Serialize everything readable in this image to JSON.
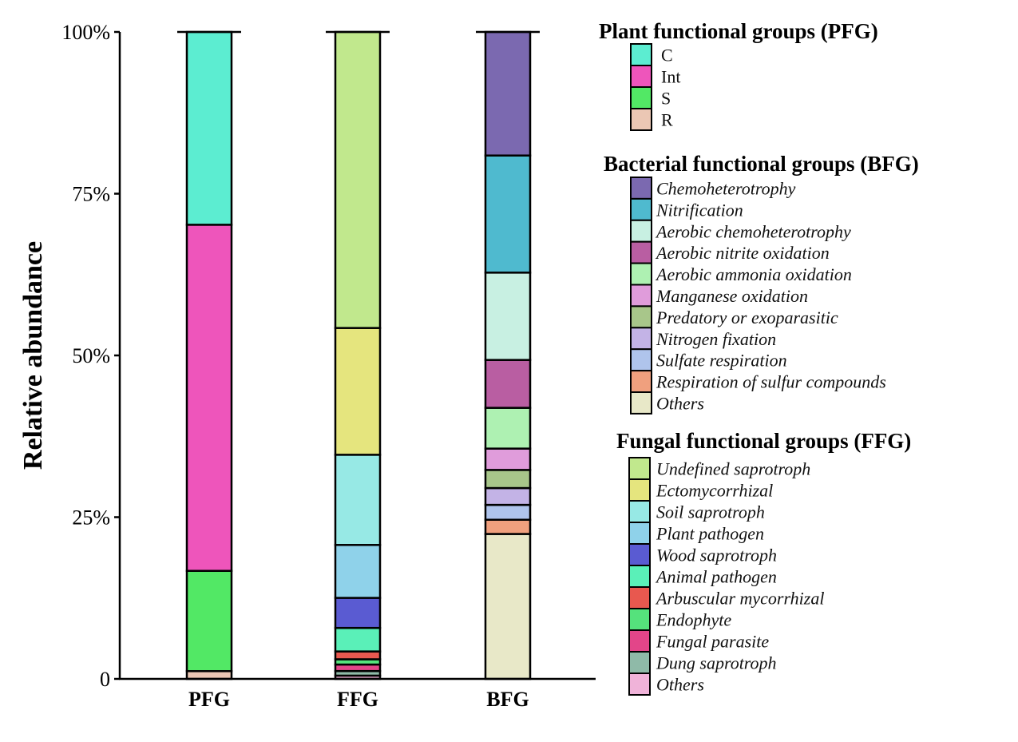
{
  "chart_data": {
    "type": "bar",
    "stacked": true,
    "ylabel": "Relative abundance",
    "xlabel": "",
    "ylim": [
      0,
      100
    ],
    "ytick_values": [
      0,
      25,
      50,
      75,
      100
    ],
    "ytick_labels": [
      "0",
      "25%",
      "50%",
      "75%",
      "100%"
    ],
    "categories": [
      "PFG",
      "FFG",
      "BFG"
    ],
    "bars": [
      {
        "category": "PFG",
        "segments": [
          {
            "name": "R",
            "value": 1.2,
            "color": "#EBC7B4"
          },
          {
            "name": "S",
            "value": 15.5,
            "color": "#52E865"
          },
          {
            "name": "Int",
            "value": 53.5,
            "color": "#EE55BB"
          },
          {
            "name": "C",
            "value": 29.8,
            "color": "#5CEDD1"
          }
        ]
      },
      {
        "category": "FFG",
        "segments": [
          {
            "name": "Others",
            "value": 0.5,
            "color": "#F0B3D9"
          },
          {
            "name": "Dung saprotroph",
            "value": 0.7,
            "color": "#8FBAA8"
          },
          {
            "name": "Fungal parasite",
            "value": 1.0,
            "color": "#E34589"
          },
          {
            "name": "Endophyte",
            "value": 0.8,
            "color": "#55E27C"
          },
          {
            "name": "Arbuscular mycorrhizal",
            "value": 1.2,
            "color": "#E8584F"
          },
          {
            "name": "Animal pathogen",
            "value": 3.6,
            "color": "#5AF0B8"
          },
          {
            "name": "Wood saprotroph",
            "value": 4.6,
            "color": "#5A5BD2"
          },
          {
            "name": "Plant pathogen",
            "value": 8.1,
            "color": "#8FD2EA"
          },
          {
            "name": "Soil saprotroph",
            "value": 13.8,
            "color": "#97E9E5"
          },
          {
            "name": "Ectomycorrhizal",
            "value": 19.4,
            "color": "#E5E57E"
          },
          {
            "name": "Undefined saprotroph",
            "value": 45.3,
            "color": "#C1E88D"
          }
        ]
      },
      {
        "category": "BFG",
        "segments": [
          {
            "name": "Others",
            "value": 22.4,
            "color": "#E8E8C8"
          },
          {
            "name": "Respiration of sulfur compounds",
            "value": 2.2,
            "color": "#F0A07E"
          },
          {
            "name": "Sulfate respiration",
            "value": 2.3,
            "color": "#AFC4EC"
          },
          {
            "name": "Nitrogen fixation",
            "value": 2.6,
            "color": "#C3B3E6"
          },
          {
            "name": "Predatory or exoparasitic",
            "value": 2.8,
            "color": "#A8C68A"
          },
          {
            "name": "Manganese oxidation",
            "value": 3.3,
            "color": "#E09CDB"
          },
          {
            "name": "Aerobic ammonia oxidation",
            "value": 6.3,
            "color": "#AEF1B2"
          },
          {
            "name": "Aerobic nitrite oxidation",
            "value": 7.4,
            "color": "#B95EA2"
          },
          {
            "name": "Aerobic chemoheterotrophy",
            "value": 13.5,
            "color": "#C8F0E2"
          },
          {
            "name": "Nitrification",
            "value": 18.1,
            "color": "#4FBACF"
          },
          {
            "name": "Chemoheterotrophy",
            "value": 19.1,
            "color": "#7B69B0"
          }
        ]
      }
    ],
    "legends": [
      {
        "title": "Plant functional groups (PFG)",
        "italic": false,
        "items": [
          {
            "label": "C",
            "color": "#5CEDD1"
          },
          {
            "label": "Int",
            "color": "#EE55BB"
          },
          {
            "label": "S",
            "color": "#52E865"
          },
          {
            "label": "R",
            "color": "#EBC7B4"
          }
        ]
      },
      {
        "title": "Bacterial functional groups (BFG)",
        "italic": true,
        "items": [
          {
            "label": "Chemoheterotrophy",
            "color": "#7B69B0"
          },
          {
            "label": "Nitrification",
            "color": "#4FBACF"
          },
          {
            "label": "Aerobic chemoheterotrophy",
            "color": "#C8F0E2"
          },
          {
            "label": "Aerobic nitrite oxidation",
            "color": "#B95EA2"
          },
          {
            "label": "Aerobic ammonia oxidation",
            "color": "#AEF1B2"
          },
          {
            "label": "Manganese oxidation",
            "color": "#E09CDB"
          },
          {
            "label": "Predatory or exoparasitic",
            "color": "#A8C68A"
          },
          {
            "label": "Nitrogen fixation",
            "color": "#C3B3E6"
          },
          {
            "label": "Sulfate respiration",
            "color": "#AFC4EC"
          },
          {
            "label": "Respiration of sulfur compounds",
            "color": "#F0A07E"
          },
          {
            "label": "Others",
            "color": "#E8E8C8"
          }
        ]
      },
      {
        "title": "Fungal functional groups (FFG)",
        "italic": true,
        "items": [
          {
            "label": "Undefined saprotroph",
            "color": "#C1E88D"
          },
          {
            "label": "Ectomycorrhizal",
            "color": "#E5E57E"
          },
          {
            "label": "Soil saprotroph",
            "color": "#97E9E5"
          },
          {
            "label": "Plant pathogen",
            "color": "#8FD2EA"
          },
          {
            "label": "Wood saprotroph",
            "color": "#5A5BD2"
          },
          {
            "label": "Animal pathogen",
            "color": "#5AF0B8"
          },
          {
            "label": "Arbuscular mycorrhizal",
            "color": "#E8584F"
          },
          {
            "label": "Endophyte",
            "color": "#55E27C"
          },
          {
            "label": "Fungal parasite",
            "color": "#E34589"
          },
          {
            "label": "Dung saprotroph",
            "color": "#8FBAA8"
          },
          {
            "label": "Others",
            "color": "#F0B3D9"
          }
        ]
      }
    ]
  }
}
